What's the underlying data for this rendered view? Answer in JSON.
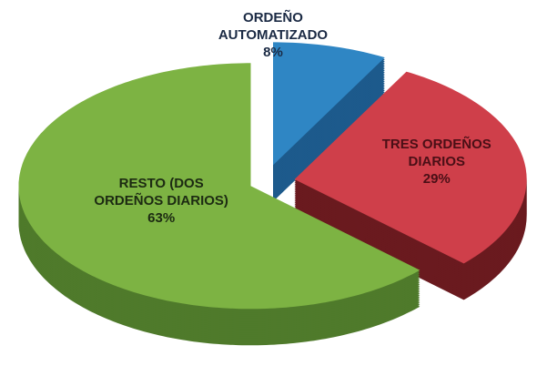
{
  "chart_data": {
    "type": "pie",
    "categories": [
      "ORDEÑO AUTOMATIZADO",
      "TRES ORDEÑOS DIARIOS",
      "RESTO (DOS ORDEÑOS DIARIOS)"
    ],
    "values": [
      8,
      29,
      63
    ],
    "value_labels": [
      "8%",
      "29%",
      "63%"
    ],
    "colors": [
      "#2f86c4",
      "#cf3f4a",
      "#7db343"
    ]
  }
}
